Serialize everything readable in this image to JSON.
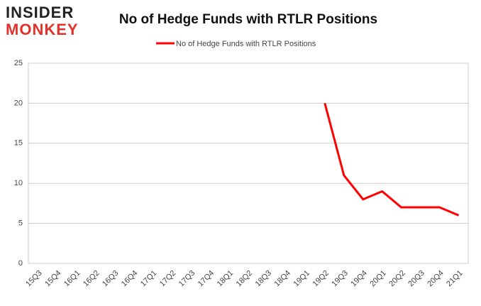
{
  "logo": {
    "line1": "INSIDER",
    "line2": "MONKEY"
  },
  "chart_data": {
    "type": "line",
    "title": "No of Hedge Funds with RTLR Positions",
    "categories": [
      "15Q3",
      "15Q4",
      "16Q1",
      "16Q2",
      "16Q3",
      "16Q4",
      "17Q1",
      "17Q2",
      "17Q3",
      "17Q4",
      "18Q1",
      "18Q2",
      "18Q3",
      "18Q4",
      "19Q1",
      "19Q2",
      "19Q3",
      "19Q4",
      "20Q1",
      "20Q2",
      "20Q3",
      "20Q4",
      "21Q1"
    ],
    "series": [
      {
        "name": "No of Hedge Funds with RTLR Positions",
        "color": "#ff0000",
        "values": [
          null,
          null,
          null,
          null,
          null,
          null,
          null,
          null,
          null,
          null,
          null,
          null,
          null,
          null,
          null,
          20,
          11,
          8,
          9,
          7,
          7,
          7,
          6
        ]
      }
    ],
    "ylim": [
      0,
      25
    ],
    "yticks": [
      0,
      5,
      10,
      15,
      20,
      25
    ],
    "grid": true,
    "legend": "top"
  }
}
